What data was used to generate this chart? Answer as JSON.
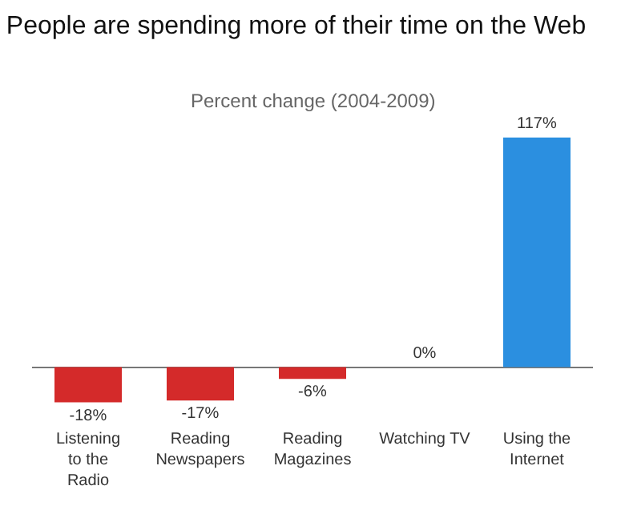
{
  "chart_data": {
    "type": "bar",
    "title": "People are spending more of their time on the Web",
    "subtitle": "Percent change (2004-2009)",
    "categories": [
      "Listening to the Radio",
      "Reading Newspapers",
      "Reading Magazines",
      "Watching TV",
      "Using the Internet"
    ],
    "values": [
      -18,
      -17,
      -6,
      0,
      117
    ],
    "value_labels": [
      "-18%",
      "-17%",
      "-6%",
      "0%",
      "117%"
    ],
    "colors": [
      "#d42a2a",
      "#d42a2a",
      "#d42a2a",
      "#d42a2a",
      "#2b8fe0"
    ],
    "tick_labels": "x",
    "grid": false
  }
}
